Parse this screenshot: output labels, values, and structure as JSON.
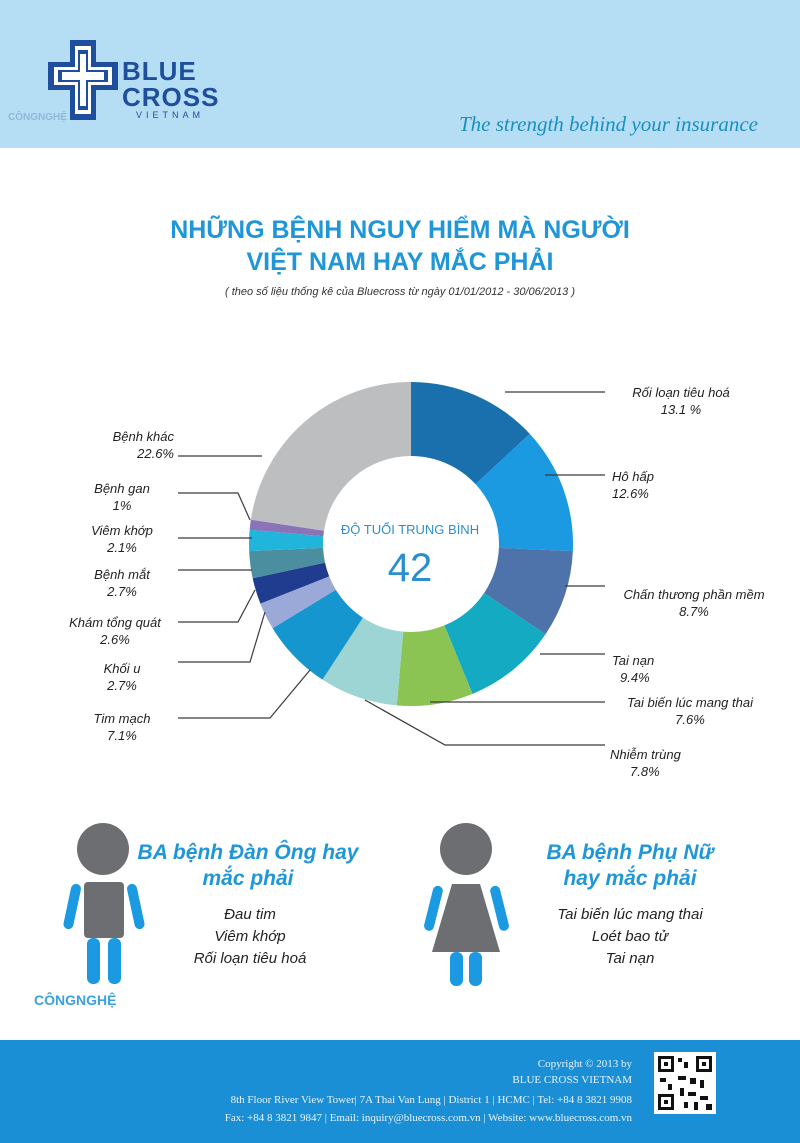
{
  "brand": {
    "name_line1": "BLUE",
    "name_line2": "CROSS",
    "country": "VIETNAM",
    "tagline": "The strength behind your insurance",
    "watermark": "CÔNGNGHỆ"
  },
  "title_line1": "NHỮNG BỆNH NGUY HIỂM MÀ NGƯỜI",
  "title_line2": "VIỆT NAM HAY MẮC PHẢI",
  "subtitle": "( theo số liệu thống kê của Bluecross từ ngày 01/01/2012 - 30/06/2013 )",
  "center": {
    "title": "ĐỘ TUỔI TRUNG BÌNH",
    "value": "42"
  },
  "chart_data": {
    "type": "pie",
    "donut": true,
    "slices": [
      {
        "name": "Rối loạn tiêu hoá",
        "value": 13.1,
        "label": "13.1 %",
        "color": "#1a6fad"
      },
      {
        "name": "Hô hấp",
        "value": 12.6,
        "label": "12.6%",
        "color": "#1b9ae2"
      },
      {
        "name": "Chấn thương phần mềm",
        "value": 8.7,
        "label": "8.7%",
        "color": "#4e73aa"
      },
      {
        "name": "Tai nạn",
        "value": 9.4,
        "label": "9.4%",
        "color": "#13aac2"
      },
      {
        "name": "Tai biến lúc mang thai",
        "value": 7.6,
        "label": "7.6%",
        "color": "#8bc453"
      },
      {
        "name": "Nhiễm trùng",
        "value": 7.8,
        "label": "7.8%",
        "color": "#9dd4d4"
      },
      {
        "name": "Tim mạch",
        "value": 7.1,
        "label": "7.1%",
        "color": "#1596cf"
      },
      {
        "name": "Khối u",
        "value": 2.7,
        "label": "2.7%",
        "color": "#9aa9d8"
      },
      {
        "name": "Khám tổng quát",
        "value": 2.6,
        "label": "2.6%",
        "color": "#203c8f"
      },
      {
        "name": "Bệnh mắt",
        "value": 2.7,
        "label": "2.7%",
        "color": "#4a8ea0"
      },
      {
        "name": "Viêm khớp",
        "value": 2.1,
        "label": "2.1%",
        "color": "#21b5dc"
      },
      {
        "name": "Bệnh gan",
        "value": 1,
        "label": "1%",
        "color": "#8a73b7"
      },
      {
        "name": "Bệnh khác",
        "value": 22.6,
        "label": "22.6%",
        "color": "#bdbec0"
      }
    ]
  },
  "men": {
    "title_line1": "BA bệnh Đàn Ông hay",
    "title_line2": "mắc phải",
    "items": [
      "Đau tim",
      "Viêm khớp",
      "Rối loạn tiêu hoá"
    ]
  },
  "women": {
    "title_line1": "BA bệnh Phụ Nữ",
    "title_line2": "hay mắc phải",
    "items": [
      "Tai biến lúc mang thai",
      "Loét bao tử",
      "Tai nạn"
    ]
  },
  "footer": {
    "line1": "Copyright © 2013 by",
    "line2": "BLUE CROSS VIETNAM",
    "line3": "8th Floor River View Tower| 7A Thai Van Lung | District 1 | HCMC | Tel: +84 8 3821 9908",
    "line4": "Fax: +84 8 3821 9847 | Email: inquiry@bluecross.com.vn | Website: www.bluecross.com.vn"
  },
  "colors": {
    "header_bg": "#b5def5",
    "accent": "#1f96d8",
    "footer_bg": "#1a8fd6",
    "figure_body": "#6d6e71",
    "figure_limbs": "#1b9ae2"
  }
}
